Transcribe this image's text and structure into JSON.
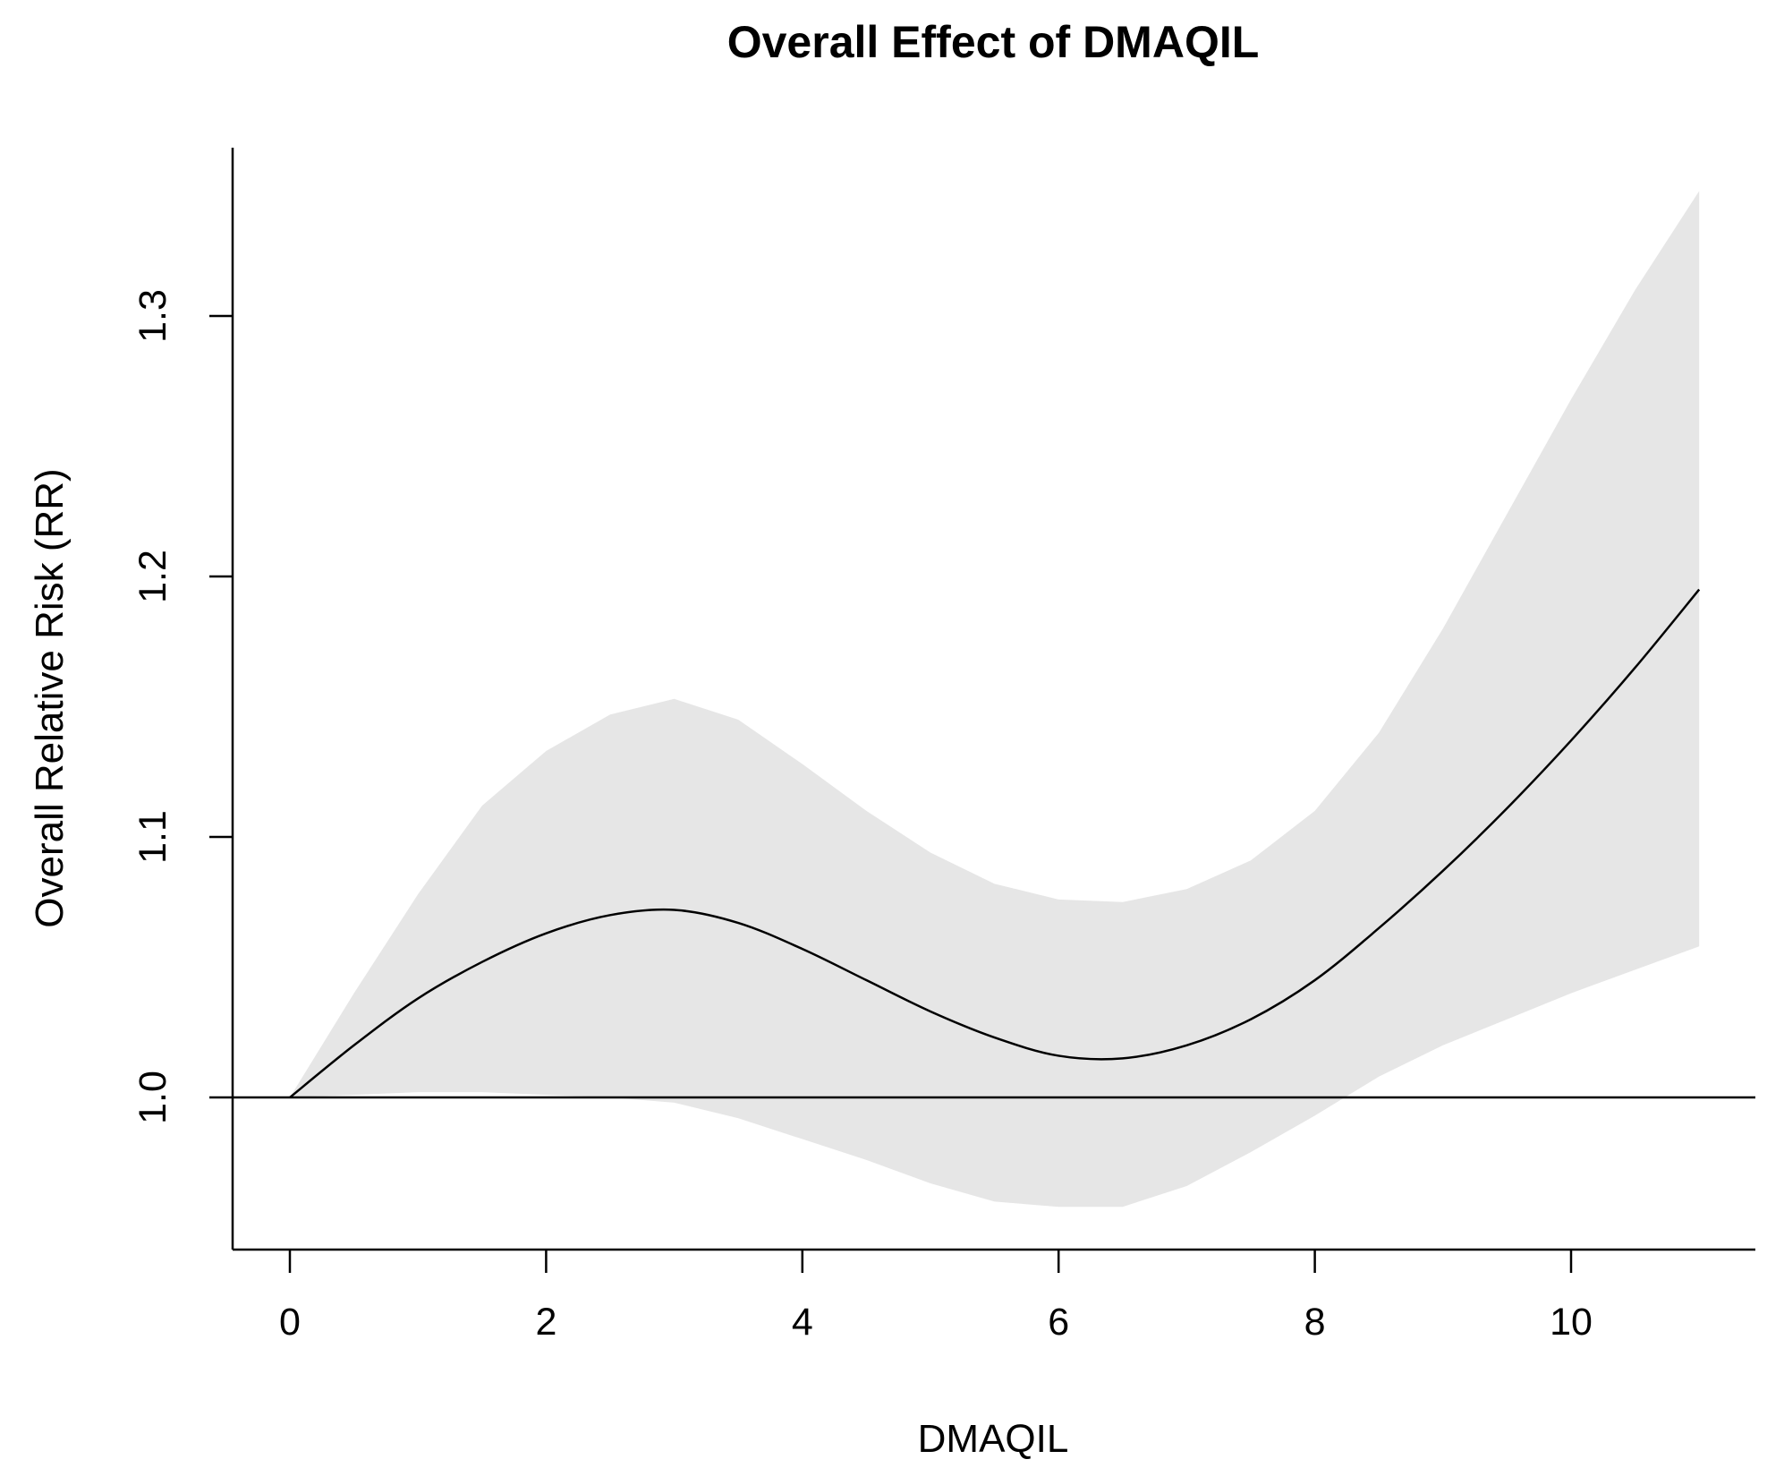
{
  "chart_data": {
    "type": "line",
    "title": "Overall Effect of DMAQIL",
    "xlabel": "DMAQIL",
    "ylabel": "Overall Relative Risk (RR)",
    "xlim": [
      0,
      11
    ],
    "ylim": [
      0.95,
      1.35
    ],
    "x_ticks": [
      0,
      2,
      4,
      6,
      8,
      10
    ],
    "x_tick_labels": [
      "0",
      "2",
      "4",
      "6",
      "8",
      "10"
    ],
    "y_ticks": [
      1.0,
      1.1,
      1.2,
      1.3
    ],
    "y_tick_labels": [
      "1.0",
      "1.1",
      "1.2",
      "1.3"
    ],
    "reference_line": 1.0,
    "x": [
      0,
      0.5,
      1,
      1.5,
      2,
      2.5,
      3,
      3.5,
      4,
      4.5,
      5,
      5.5,
      6,
      6.5,
      7,
      7.5,
      8,
      8.5,
      9,
      9.5,
      10,
      10.5,
      11
    ],
    "rr": [
      1.0,
      1.02,
      1.038,
      1.052,
      1.063,
      1.07,
      1.072,
      1.067,
      1.057,
      1.045,
      1.033,
      1.023,
      1.016,
      1.015,
      1.02,
      1.03,
      1.045,
      1.065,
      1.087,
      1.111,
      1.137,
      1.165,
      1.195
    ],
    "lower": [
      1.0,
      1.001,
      1.002,
      1.002,
      1.001,
      1.0,
      0.998,
      0.992,
      0.984,
      0.976,
      0.967,
      0.96,
      0.958,
      0.958,
      0.966,
      0.979,
      0.993,
      1.008,
      1.02,
      1.03,
      1.04,
      1.049,
      1.058
    ],
    "upper": [
      1.0,
      1.04,
      1.078,
      1.112,
      1.133,
      1.147,
      1.153,
      1.145,
      1.128,
      1.11,
      1.094,
      1.082,
      1.076,
      1.075,
      1.08,
      1.091,
      1.11,
      1.14,
      1.18,
      1.224,
      1.268,
      1.31,
      1.348
    ],
    "ci_color": "#e6e6e6",
    "line_color": "#000000"
  }
}
